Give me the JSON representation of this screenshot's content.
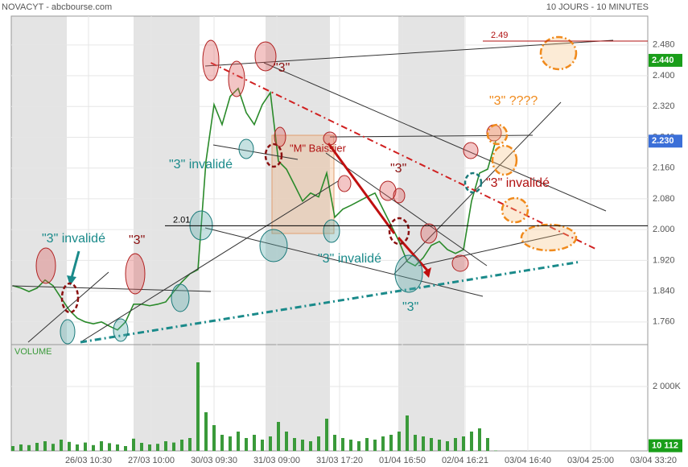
{
  "chart_data": {
    "type": "line",
    "title": "NOVACYT - abcbourse.com",
    "subtitle": "10 JOURS - 10 MINUTES",
    "color": "#2a8a2a",
    "x": [
      0,
      1,
      2,
      3,
      4,
      5,
      6,
      7,
      8,
      9,
      10,
      11,
      12,
      13,
      14,
      15,
      16,
      17,
      18,
      19,
      20,
      21,
      22,
      23,
      24,
      25,
      26,
      27,
      28,
      29,
      30,
      31,
      32,
      33,
      34,
      35,
      36,
      37,
      38,
      39,
      40,
      41,
      42,
      43,
      44,
      45,
      46,
      47,
      48,
      49,
      50,
      51,
      52,
      53,
      54,
      55,
      56,
      57,
      58,
      59,
      60
    ],
    "values": [
      1.854,
      1.848,
      1.839,
      1.848,
      1.869,
      1.854,
      1.822,
      1.791,
      1.77,
      1.76,
      1.755,
      1.76,
      1.749,
      1.739,
      1.76,
      1.806,
      1.806,
      1.802,
      1.806,
      1.812,
      1.839,
      1.864,
      1.885,
      1.896,
      2.178,
      2.325,
      2.273,
      2.346,
      2.367,
      2.304,
      2.273,
      2.325,
      2.356,
      2.178,
      2.157,
      2.116,
      2.074,
      2.095,
      2.085,
      2.147,
      2.032,
      2.053,
      2.063,
      2.074,
      2.085,
      2.095,
      2.053,
      2.011,
      1.969,
      1.917,
      1.906,
      1.927,
      1.959,
      1.969,
      1.948,
      1.938,
      1.948,
      2.074,
      2.147,
      2.157,
      2.23
    ],
    "xlim": [
      -0.2,
      78.9
    ],
    "xticks": [
      {
        "value": 9.4,
        "label": "26/03 10:30"
      },
      {
        "value": 17.2,
        "label": "27/03 10:00"
      },
      {
        "value": 25,
        "label": "30/03 09:30"
      },
      {
        "value": 32.8,
        "label": "31/03 09:00"
      },
      {
        "value": 40.6,
        "label": "31/03 17:20"
      },
      {
        "value": 48.4,
        "label": "01/04 16:50"
      },
      {
        "value": 56.2,
        "label": "02/04 16:21"
      },
      {
        "value": 64,
        "label": "03/04 16:40"
      },
      {
        "value": 71.8,
        "label": "03/04 25:00"
      },
      {
        "value": 79.6,
        "label": "03/04 33:20"
      }
    ],
    "ylim": [
      1.701,
      2.555
    ],
    "yticks": [
      {
        "value": 1.76,
        "label": "1.760"
      },
      {
        "value": 1.84,
        "label": "1.840"
      },
      {
        "value": 1.92,
        "label": "1.920"
      },
      {
        "value": 2.0,
        "label": "2.000"
      },
      {
        "value": 2.08,
        "label": "2.080"
      },
      {
        "value": 2.16,
        "label": "2.160"
      },
      {
        "value": 2.24,
        "label": "2.240"
      },
      {
        "value": 2.32,
        "label": "2.320"
      },
      {
        "value": 2.4,
        "label": "2.400"
      },
      {
        "value": 2.48,
        "label": "2.480"
      }
    ],
    "grid": true,
    "levels": [
      {
        "value": 2.49,
        "label": "2.49",
        "color": "#b01010"
      },
      {
        "value": 2.01,
        "label": "2.01",
        "color": "#000000"
      }
    ],
    "price_markers": [
      {
        "value": 2.44,
        "label": "2.440",
        "color": "#1a9e1a"
      },
      {
        "value": 2.23,
        "label": "2.230",
        "color": "#3b6fd8"
      }
    ],
    "volume": {
      "label": "VOLUME",
      "color": "#3a9a3a",
      "values": [
        150000,
        200000,
        180000,
        250000,
        300000,
        220000,
        350000,
        280000,
        200000,
        260000,
        180000,
        300000,
        240000,
        200000,
        150000,
        380000,
        250000,
        200000,
        220000,
        300000,
        260000,
        350000,
        400000,
        2750000,
        1200000,
        800000,
        500000,
        450000,
        600000,
        400000,
        500000,
        350000,
        450000,
        900000,
        600000,
        400000,
        350000,
        300000,
        450000,
        1000000,
        500000,
        400000,
        350000,
        300000,
        400000,
        350000,
        450000,
        500000,
        600000,
        1100000,
        500000,
        450000,
        400000,
        350000,
        300000,
        400000,
        450000,
        600000,
        700000,
        400000,
        10112
      ],
      "ylim": [
        0,
        3250000
      ],
      "yticks": [
        {
          "value": 2000000,
          "label": "2 000K"
        }
      ],
      "marker": {
        "value": 10112,
        "label": "10 112",
        "color": "#1a9e1a"
      }
    },
    "annotations": [
      {
        "text": "\"3\"",
        "color": "#8b1010"
      },
      {
        "text": "\"3\"  invalidé",
        "color": "#1a8a8a"
      },
      {
        "text": "\"3\"",
        "color": "#8b1010"
      },
      {
        "text": "\"3\" invalidé",
        "color": "#1a8a8a"
      },
      {
        "text": "\"M\" Baissier",
        "color": "#b01010"
      },
      {
        "text": "\"3\"",
        "color": "#8b1010"
      },
      {
        "text": "\"3\" ????",
        "color": "#f08a1c"
      },
      {
        "text": "\"3\" invalidé",
        "color": "#b01010"
      },
      {
        "text": "\"3\" invalidé",
        "color": "#1a8a8a"
      },
      {
        "text": "\"3\"",
        "color": "#1a8a8a"
      }
    ]
  }
}
